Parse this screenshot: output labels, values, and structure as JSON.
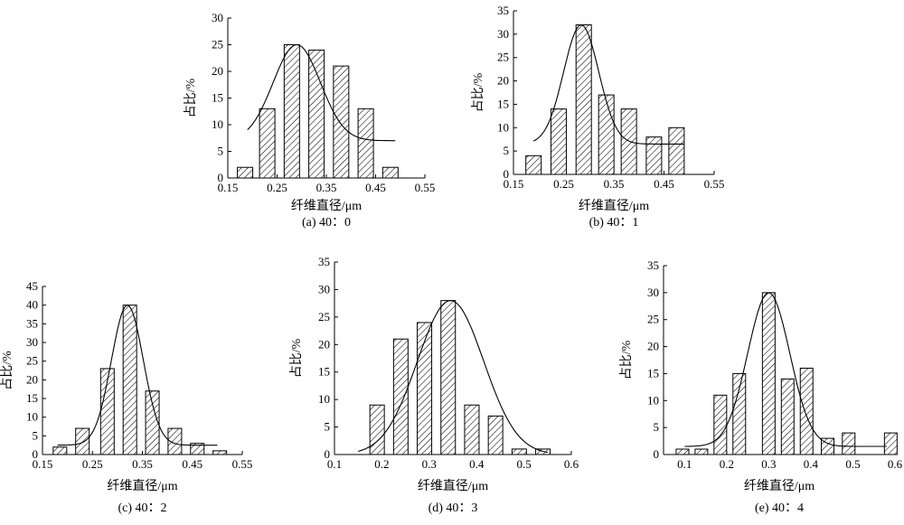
{
  "figure": {
    "panels_count": 5
  },
  "chart_data": [
    {
      "id": "a",
      "type": "bar",
      "caption": "(a) 40：0",
      "xlabel": "纤维直径/μm",
      "ylabel": "占比/%",
      "xlim": [
        0.15,
        0.55
      ],
      "ylim": [
        0,
        30
      ],
      "xticks": [
        "0.15",
        "0.25",
        "0.35",
        "0.45",
        "0.55"
      ],
      "yticks": [
        "0",
        "5",
        "10",
        "15",
        "20",
        "25",
        "30"
      ],
      "x": [
        0.185,
        0.23,
        0.28,
        0.33,
        0.38,
        0.43,
        0.48
      ],
      "values": [
        2,
        13,
        25,
        24,
        21,
        13,
        2
      ],
      "fit": {
        "kind": "gaussian",
        "peak_x": 0.29,
        "peak_y": 25,
        "sigma": 0.048,
        "baseline": 7,
        "x_range": [
          0.19,
          0.49
        ]
      }
    },
    {
      "id": "b",
      "type": "bar",
      "caption": "(b) 40：1",
      "xlabel": "纤维直径/μm",
      "ylabel": "占比/%",
      "xlim": [
        0.15,
        0.55
      ],
      "ylim": [
        0,
        35
      ],
      "xticks": [
        "0.15",
        "0.25",
        "0.35",
        "0.45",
        "0.55"
      ],
      "yticks": [
        "0",
        "5",
        "10",
        "15",
        "20",
        "25",
        "30",
        "35"
      ],
      "x": [
        0.19,
        0.24,
        0.29,
        0.335,
        0.38,
        0.43,
        0.475
      ],
      "values": [
        4,
        14,
        32,
        17,
        14,
        8,
        10
      ],
      "fit": {
        "kind": "gaussian",
        "peak_x": 0.285,
        "peak_y": 32,
        "sigma": 0.035,
        "baseline": 6.5,
        "x_range": [
          0.19,
          0.49
        ]
      }
    },
    {
      "id": "c",
      "type": "bar",
      "caption": "(c) 40：2",
      "xlabel": "纤维直径/μm",
      "ylabel": "占比/%",
      "xlim": [
        0.15,
        0.55
      ],
      "ylim": [
        0,
        45
      ],
      "xticks": [
        "0.15",
        "0.25",
        "0.35",
        "0.45",
        "0.55"
      ],
      "yticks": [
        "0",
        "5",
        "10",
        "15",
        "20",
        "25",
        "30",
        "35",
        "40",
        "45"
      ],
      "x": [
        0.185,
        0.23,
        0.28,
        0.325,
        0.37,
        0.415,
        0.46,
        0.505
      ],
      "values": [
        2,
        7,
        23,
        40,
        17,
        7,
        3,
        1
      ],
      "fit": {
        "kind": "gaussian",
        "peak_x": 0.32,
        "peak_y": 40,
        "sigma": 0.032,
        "baseline": 2.5,
        "x_range": [
          0.18,
          0.5
        ]
      }
    },
    {
      "id": "d",
      "type": "bar",
      "caption": "(d) 40：3",
      "xlabel": "纤维直径/μm",
      "ylabel": "占比/%",
      "xlim": [
        0.1,
        0.6
      ],
      "ylim": [
        0,
        35
      ],
      "xticks": [
        "0.1",
        "0.2",
        "0.3",
        "0.4",
        "0.5",
        "0.6"
      ],
      "yticks": [
        "0",
        "5",
        "10",
        "15",
        "20",
        "25",
        "30",
        "35"
      ],
      "x": [
        0.19,
        0.24,
        0.29,
        0.34,
        0.39,
        0.44,
        0.49,
        0.54
      ],
      "values": [
        9,
        21,
        24,
        28,
        9,
        7,
        1,
        1
      ],
      "fit": {
        "kind": "gaussian",
        "peak_x": 0.345,
        "peak_y": 28,
        "sigma": 0.07,
        "baseline": 0,
        "x_range": [
          0.15,
          0.55
        ]
      }
    },
    {
      "id": "e",
      "type": "bar",
      "caption": "(e) 40：4",
      "xlabel": "纤维直径/μm",
      "ylabel": "占比/%",
      "xlim": [
        0.05,
        0.6
      ],
      "ylim": [
        0,
        35
      ],
      "xticks": [
        "0.1",
        "0.2",
        "0.3",
        "0.4",
        "0.5",
        "0.6"
      ],
      "yticks": [
        "0",
        "5",
        "10",
        "15",
        "20",
        "25",
        "30",
        "35"
      ],
      "x": [
        0.095,
        0.14,
        0.185,
        0.23,
        0.3,
        0.345,
        0.39,
        0.44,
        0.49,
        0.59
      ],
      "values": [
        1,
        1,
        11,
        15,
        30,
        14,
        16,
        3,
        4,
        4
      ],
      "fit": {
        "kind": "gaussian",
        "peak_x": 0.3,
        "peak_y": 30,
        "sigma": 0.05,
        "baseline": 1.5,
        "x_range": [
          0.1,
          0.58
        ]
      }
    }
  ]
}
